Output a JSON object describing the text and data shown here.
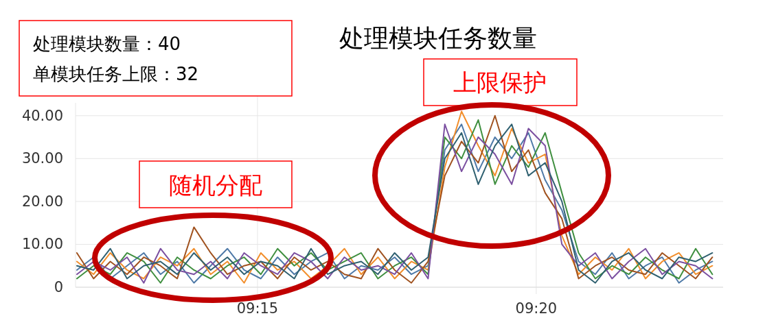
{
  "chart_data": {
    "type": "line",
    "title": "处理模块任务数量",
    "annotations": [
      "处理模块数量：40",
      "单模块任务上限：32",
      "随机分配",
      "上限保护"
    ],
    "x": [
      9.196,
      9.201,
      9.206,
      9.211,
      9.216,
      9.221,
      9.226,
      9.231,
      9.236,
      9.241,
      9.246,
      9.251,
      9.256,
      9.261,
      9.266,
      9.271,
      9.276,
      9.281,
      9.286,
      9.291,
      9.296,
      9.301,
      9.306,
      9.311,
      9.316,
      9.321,
      9.326,
      9.331,
      9.336,
      9.341,
      9.346,
      9.351,
      9.356,
      9.361,
      9.366,
      9.371,
      9.376,
      9.381,
      9.386
    ],
    "series": [
      {
        "color": "#4e79a7",
        "values": [
          4,
          7,
          2,
          5,
          8,
          3,
          6,
          1,
          5,
          9,
          4,
          2,
          7,
          3,
          6,
          8,
          2,
          5,
          4,
          7,
          3,
          5,
          32,
          38,
          27,
          35,
          30,
          36,
          25,
          18,
          6,
          3,
          8,
          2,
          5,
          7,
          1,
          4,
          6
        ]
      },
      {
        "color": "#f28e2b",
        "values": [
          6,
          3,
          8,
          4,
          2,
          7,
          5,
          9,
          3,
          6,
          1,
          8,
          4,
          6,
          2,
          5,
          9,
          3,
          7,
          2,
          6,
          4,
          28,
          41,
          33,
          26,
          37,
          29,
          31,
          12,
          3,
          7,
          4,
          9,
          2,
          6,
          8,
          3,
          5
        ]
      },
      {
        "color": "#3f8f3f",
        "values": [
          2,
          5,
          3,
          8,
          6,
          1,
          7,
          4,
          2,
          5,
          7,
          3,
          9,
          5,
          8,
          4,
          6,
          8,
          2,
          5,
          7,
          3,
          35,
          30,
          39,
          24,
          33,
          28,
          36,
          22,
          8,
          2,
          5,
          3,
          7,
          4,
          2,
          9,
          3
        ]
      },
      {
        "color": "#a0521f",
        "values": [
          8,
          2,
          6,
          3,
          7,
          5,
          2,
          14,
          8,
          3,
          5,
          6,
          2,
          7,
          4,
          6,
          3,
          2,
          9,
          4,
          1,
          6,
          26,
          34,
          29,
          40,
          27,
          32,
          22,
          16,
          2,
          5,
          7,
          4,
          3,
          8,
          5,
          2,
          7
        ]
      },
      {
        "color": "#7b4fa0",
        "values": [
          3,
          6,
          4,
          7,
          1,
          9,
          4,
          3,
          6,
          2,
          8,
          5,
          3,
          8,
          6,
          2,
          7,
          4,
          5,
          3,
          8,
          2,
          38,
          27,
          35,
          31,
          24,
          37,
          33,
          10,
          5,
          8,
          2,
          6,
          9,
          3,
          6,
          5,
          2
        ]
      },
      {
        "color": "#2f6070",
        "values": [
          5,
          4,
          9,
          2,
          5,
          6,
          3,
          8,
          4,
          7,
          3,
          6,
          5,
          2,
          9,
          3,
          5,
          6,
          3,
          8,
          4,
          7,
          30,
          36,
          24,
          33,
          38,
          26,
          29,
          20,
          4,
          1,
          6,
          8,
          4,
          2,
          7,
          6,
          8
        ]
      }
    ],
    "xlim": [
      9.1956,
      9.3892
    ],
    "xticks": [
      {
        "value": 9.25,
        "label": "09:15"
      },
      {
        "value": 9.333333,
        "label": "09:20"
      }
    ],
    "ylim": [
      0,
      43
    ],
    "yticks": [
      0,
      {
        "value": 10,
        "label": "10.00"
      },
      {
        "value": 20,
        "label": "20.00"
      },
      {
        "value": 30,
        "label": "30.00"
      },
      {
        "value": 40,
        "label": "40.00"
      }
    ],
    "grid": true
  }
}
